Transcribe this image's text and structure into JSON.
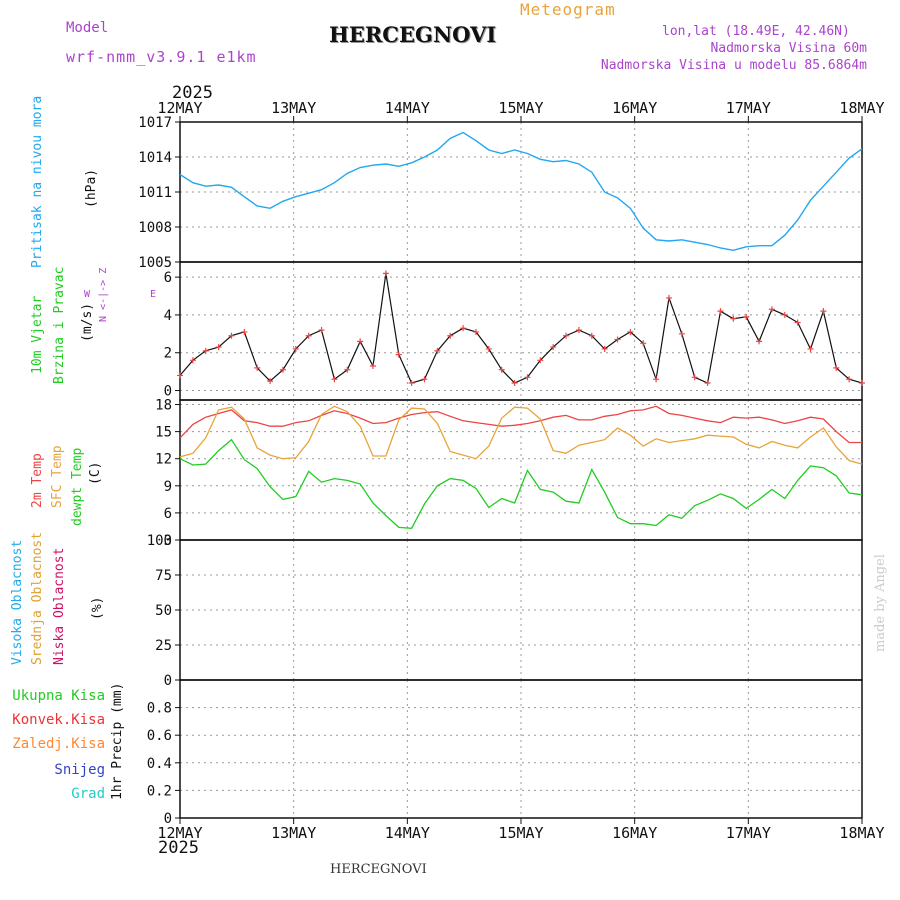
{
  "header": {
    "meteogram_label": "Meteogram",
    "model_label": "Model",
    "model_name": "wrf-nmm_v3.9.1 e1km",
    "station": "HERCEGNOVI",
    "coords": "lon,lat (18.49E, 42.46N)",
    "elevation": "Nadmorska Visina 60m",
    "model_elevation": "Nadmorska Visina u modelu 85.6864m",
    "year": "2025",
    "footer_station": "HERCEGNOVI",
    "credit": "made by Angel",
    "wind_compass": [
      "N",
      "<",
      "-",
      "|",
      "-",
      ">",
      "Z",
      "W",
      "E"
    ]
  },
  "colors": {
    "pressure": "#22a7f0",
    "temp2m": "#ee4444",
    "sfc": "#e8a33a",
    "dewpt": "#22cc22",
    "high_cloud": "#22aaee",
    "mid_cloud": "#e0a030",
    "low_cloud": "#cc1166",
    "wind_label": "#22cc22",
    "wind_label2": "#22cc22",
    "compass": "#aa44cc",
    "total_precip": "#22cc22",
    "conv_precip": "#ee3333",
    "frozen": "#ff8833",
    "snow": "#3344cc",
    "graupel": "#22cccc",
    "meta": "#aa44cc",
    "meteogram": "#e8a33a",
    "credit": "#cccccc"
  },
  "chart_data": [
    {
      "type": "line",
      "name": "pressure",
      "x_ticks": [
        "12MAY",
        "13MAY",
        "14MAY",
        "15MAY",
        "16MAY",
        "17MAY",
        "18MAY"
      ],
      "ylabel_parts": [
        "Pritisak na nivou mora",
        "(hPa)"
      ],
      "ylim": [
        1005,
        1017
      ],
      "yticks": [
        1005,
        1008,
        1011,
        1014,
        1017
      ],
      "grid": true,
      "series": [
        {
          "values": [
            1012.5,
            1011.8,
            1011.5,
            1011.6,
            1011.4,
            1010.6,
            1009.8,
            1009.6,
            1010.2,
            1010.6,
            1010.9,
            1011.2,
            1011.8,
            1012.6,
            1013.1,
            1013.3,
            1013.4,
            1013.2,
            1013.5,
            1014.0,
            1014.6,
            1015.6,
            1016.1,
            1015.4,
            1014.6,
            1014.3,
            1014.6,
            1014.3,
            1013.8,
            1013.6,
            1013.7,
            1013.4,
            1012.7,
            1011.0,
            1010.5,
            1009.6,
            1007.9,
            1006.9,
            1006.8,
            1006.9,
            1006.7,
            1006.5,
            1006.2,
            1006.0,
            1006.3,
            1006.4,
            1006.4,
            1007.3,
            1008.6,
            1010.3,
            1011.5,
            1012.7,
            1013.9,
            1014.7
          ]
        }
      ]
    },
    {
      "type": "line",
      "name": "wind",
      "ylabel_parts": [
        "10m Vjetar",
        "Brzina i Pravac",
        "(m/s)"
      ],
      "ylim": [
        -0.5,
        6.8
      ],
      "yticks": [
        0,
        2,
        4,
        6
      ],
      "grid": true,
      "series": [
        {
          "values": [
            0.8,
            1.6,
            2.1,
            2.3,
            2.9,
            3.1,
            1.2,
            0.5,
            1.1,
            2.2,
            2.9,
            3.2,
            0.6,
            1.1,
            2.6,
            1.3,
            6.2,
            1.9,
            0.4,
            0.6,
            2.1,
            2.9,
            3.3,
            3.1,
            2.2,
            1.1,
            0.4,
            0.7,
            1.6,
            2.3,
            2.9,
            3.2,
            2.9,
            2.2,
            2.7,
            3.1,
            2.5,
            0.6,
            4.9,
            3.0,
            0.7,
            0.4,
            4.2,
            3.8,
            3.9,
            2.6,
            4.3,
            4.0,
            3.6,
            2.2,
            4.2,
            1.2,
            0.6,
            0.4
          ]
        }
      ]
    },
    {
      "type": "line",
      "name": "temperature",
      "ylabel_parts": [
        "2m Temp",
        "SFC Temp",
        "dewpt Temp",
        "(C)"
      ],
      "ylim": [
        3,
        18.5
      ],
      "yticks": [
        3,
        6,
        9,
        12,
        15,
        18
      ],
      "grid": true,
      "series": [
        {
          "name": "2m Temp",
          "values": [
            14.3,
            15.8,
            16.6,
            17.0,
            17.4,
            16.2,
            16.0,
            15.6,
            15.6,
            16.0,
            16.2,
            16.8,
            17.3,
            17.0,
            16.5,
            15.9,
            16.0,
            16.5,
            16.9,
            17.1,
            17.2,
            16.7,
            16.2,
            16.0,
            15.8,
            15.6,
            15.7,
            15.9,
            16.2,
            16.6,
            16.8,
            16.3,
            16.3,
            16.7,
            16.9,
            17.3,
            17.4,
            17.8,
            17.0,
            16.8,
            16.5,
            16.2,
            16.0,
            16.6,
            16.5,
            16.6,
            16.3,
            15.9,
            16.2,
            16.6,
            16.4,
            15.0,
            13.8,
            13.8
          ]
        },
        {
          "name": "SFC Temp",
          "values": [
            12.2,
            12.6,
            14.3,
            17.4,
            17.7,
            16.4,
            13.2,
            12.4,
            12.0,
            12.1,
            13.9,
            16.9,
            17.8,
            17.2,
            15.6,
            12.3,
            12.3,
            16.3,
            17.6,
            17.5,
            15.9,
            12.8,
            12.4,
            12.0,
            13.4,
            16.5,
            17.7,
            17.6,
            16.4,
            12.9,
            12.6,
            13.5,
            13.8,
            14.1,
            15.4,
            14.6,
            13.4,
            14.2,
            13.8,
            14.0,
            14.2,
            14.6,
            14.5,
            14.4,
            13.6,
            13.2,
            13.9,
            13.5,
            13.2,
            14.4,
            15.4,
            13.3,
            11.8,
            11.4
          ]
        },
        {
          "name": "dewpt Temp",
          "values": [
            12.0,
            11.3,
            11.4,
            12.9,
            14.1,
            11.9,
            10.9,
            8.9,
            7.5,
            7.8,
            10.6,
            9.4,
            9.8,
            9.6,
            9.2,
            7.1,
            5.7,
            4.4,
            4.3,
            7.0,
            9.0,
            9.8,
            9.6,
            8.7,
            6.6,
            7.6,
            7.1,
            10.7,
            8.6,
            8.3,
            7.3,
            7.1,
            10.8,
            8.3,
            5.5,
            4.8,
            4.8,
            4.6,
            5.8,
            5.4,
            6.8,
            7.4,
            8.1,
            7.6,
            6.5,
            7.5,
            8.6,
            7.6,
            9.6,
            11.2,
            11.0,
            10.1,
            8.2,
            8.0
          ]
        }
      ]
    },
    {
      "type": "bar",
      "name": "cloud",
      "ylabel_parts": [
        "Visoka Oblacnost",
        "Srednja Oblacnost",
        "Niska Oblacnost",
        "(%)"
      ],
      "ylim": [
        0,
        100
      ],
      "yticks": [
        0,
        25,
        50,
        75,
        100
      ],
      "grid": true,
      "series": [
        {
          "name": "Visoka Oblacnost",
          "values": [
            0,
            0,
            0,
            0,
            0,
            0,
            0,
            0,
            0,
            0,
            0,
            0,
            0,
            0,
            0,
            0,
            0,
            0,
            0,
            0,
            0,
            0,
            0,
            0,
            0,
            0,
            0,
            0,
            0,
            0,
            0,
            0,
            0,
            0,
            0,
            0,
            0,
            0,
            0,
            0,
            0,
            0,
            0,
            0,
            0,
            0,
            0,
            0,
            0,
            0,
            0,
            0,
            0,
            0
          ]
        },
        {
          "name": "Srednja Oblacnost",
          "values": [
            0,
            0,
            0,
            0,
            0,
            0,
            0,
            0,
            0,
            0,
            0,
            0,
            0,
            0,
            0,
            0,
            0,
            0,
            0,
            0,
            0,
            0,
            0,
            0,
            0,
            0,
            0,
            0,
            0,
            0,
            0,
            0,
            0,
            0,
            0,
            0,
            0,
            0,
            0,
            0,
            0,
            0,
            0,
            0,
            0,
            0,
            0,
            0,
            0,
            0,
            0,
            0,
            0,
            0
          ]
        },
        {
          "name": "Niska Oblacnost",
          "values": [
            0,
            0,
            0,
            0,
            0,
            0,
            0,
            0,
            0,
            0,
            0,
            0,
            0,
            0,
            0,
            0,
            0,
            0,
            0,
            0,
            0,
            0,
            0,
            0,
            0,
            0,
            0,
            0,
            0,
            0,
            0,
            0,
            0,
            0,
            0,
            0,
            0,
            0,
            0,
            0,
            0,
            0,
            0,
            0,
            0,
            0,
            0,
            0,
            0,
            0,
            0,
            0,
            0,
            0
          ]
        }
      ]
    },
    {
      "type": "bar",
      "name": "precip",
      "ylabel_parts": [
        "1hr Precip (mm)"
      ],
      "legend": [
        "Ukupna Kisa",
        "Konvek.Kisa",
        "Zaledj.Kisa",
        "Snijeg",
        "Grad"
      ],
      "ylim": [
        0,
        1.0
      ],
      "yticks": [
        0,
        0.2,
        0.4,
        0.6,
        0.8
      ],
      "grid": true,
      "series": []
    }
  ]
}
